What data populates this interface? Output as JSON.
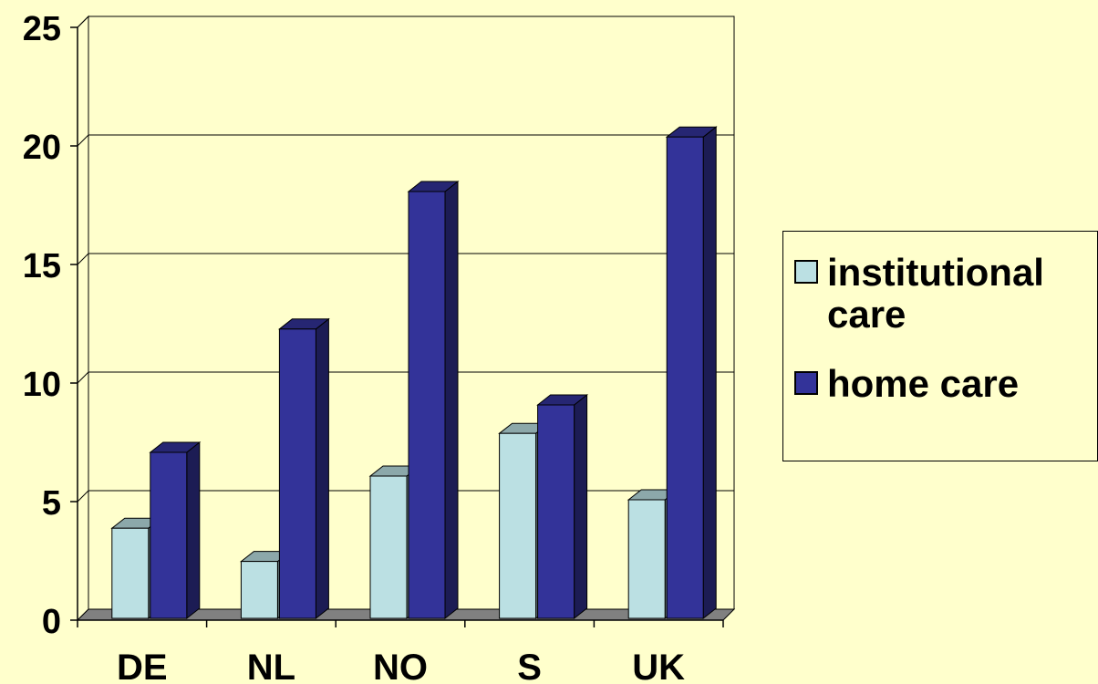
{
  "chart_data": {
    "type": "bar",
    "style": "3d-clustered-column",
    "categories": [
      "DE",
      "NL",
      "NO",
      "S",
      "UK"
    ],
    "series": [
      {
        "name": "institutional care",
        "values": [
          3.8,
          2.4,
          6.0,
          7.8,
          5.0
        ],
        "color": "#BBE0E3"
      },
      {
        "name": "home care",
        "values": [
          7.0,
          12.2,
          18.0,
          9.0,
          20.3
        ],
        "color": "#333399"
      }
    ],
    "yticks": [
      0,
      5,
      10,
      15,
      20,
      25
    ],
    "ylim": [
      0,
      25
    ],
    "grid": true,
    "legend_position": "right",
    "background": "#FFFFCC"
  },
  "legend": {
    "items": [
      {
        "label": "institutional care",
        "color": "#BBE0E3"
      },
      {
        "label": "home care",
        "color": "#333399"
      }
    ]
  }
}
